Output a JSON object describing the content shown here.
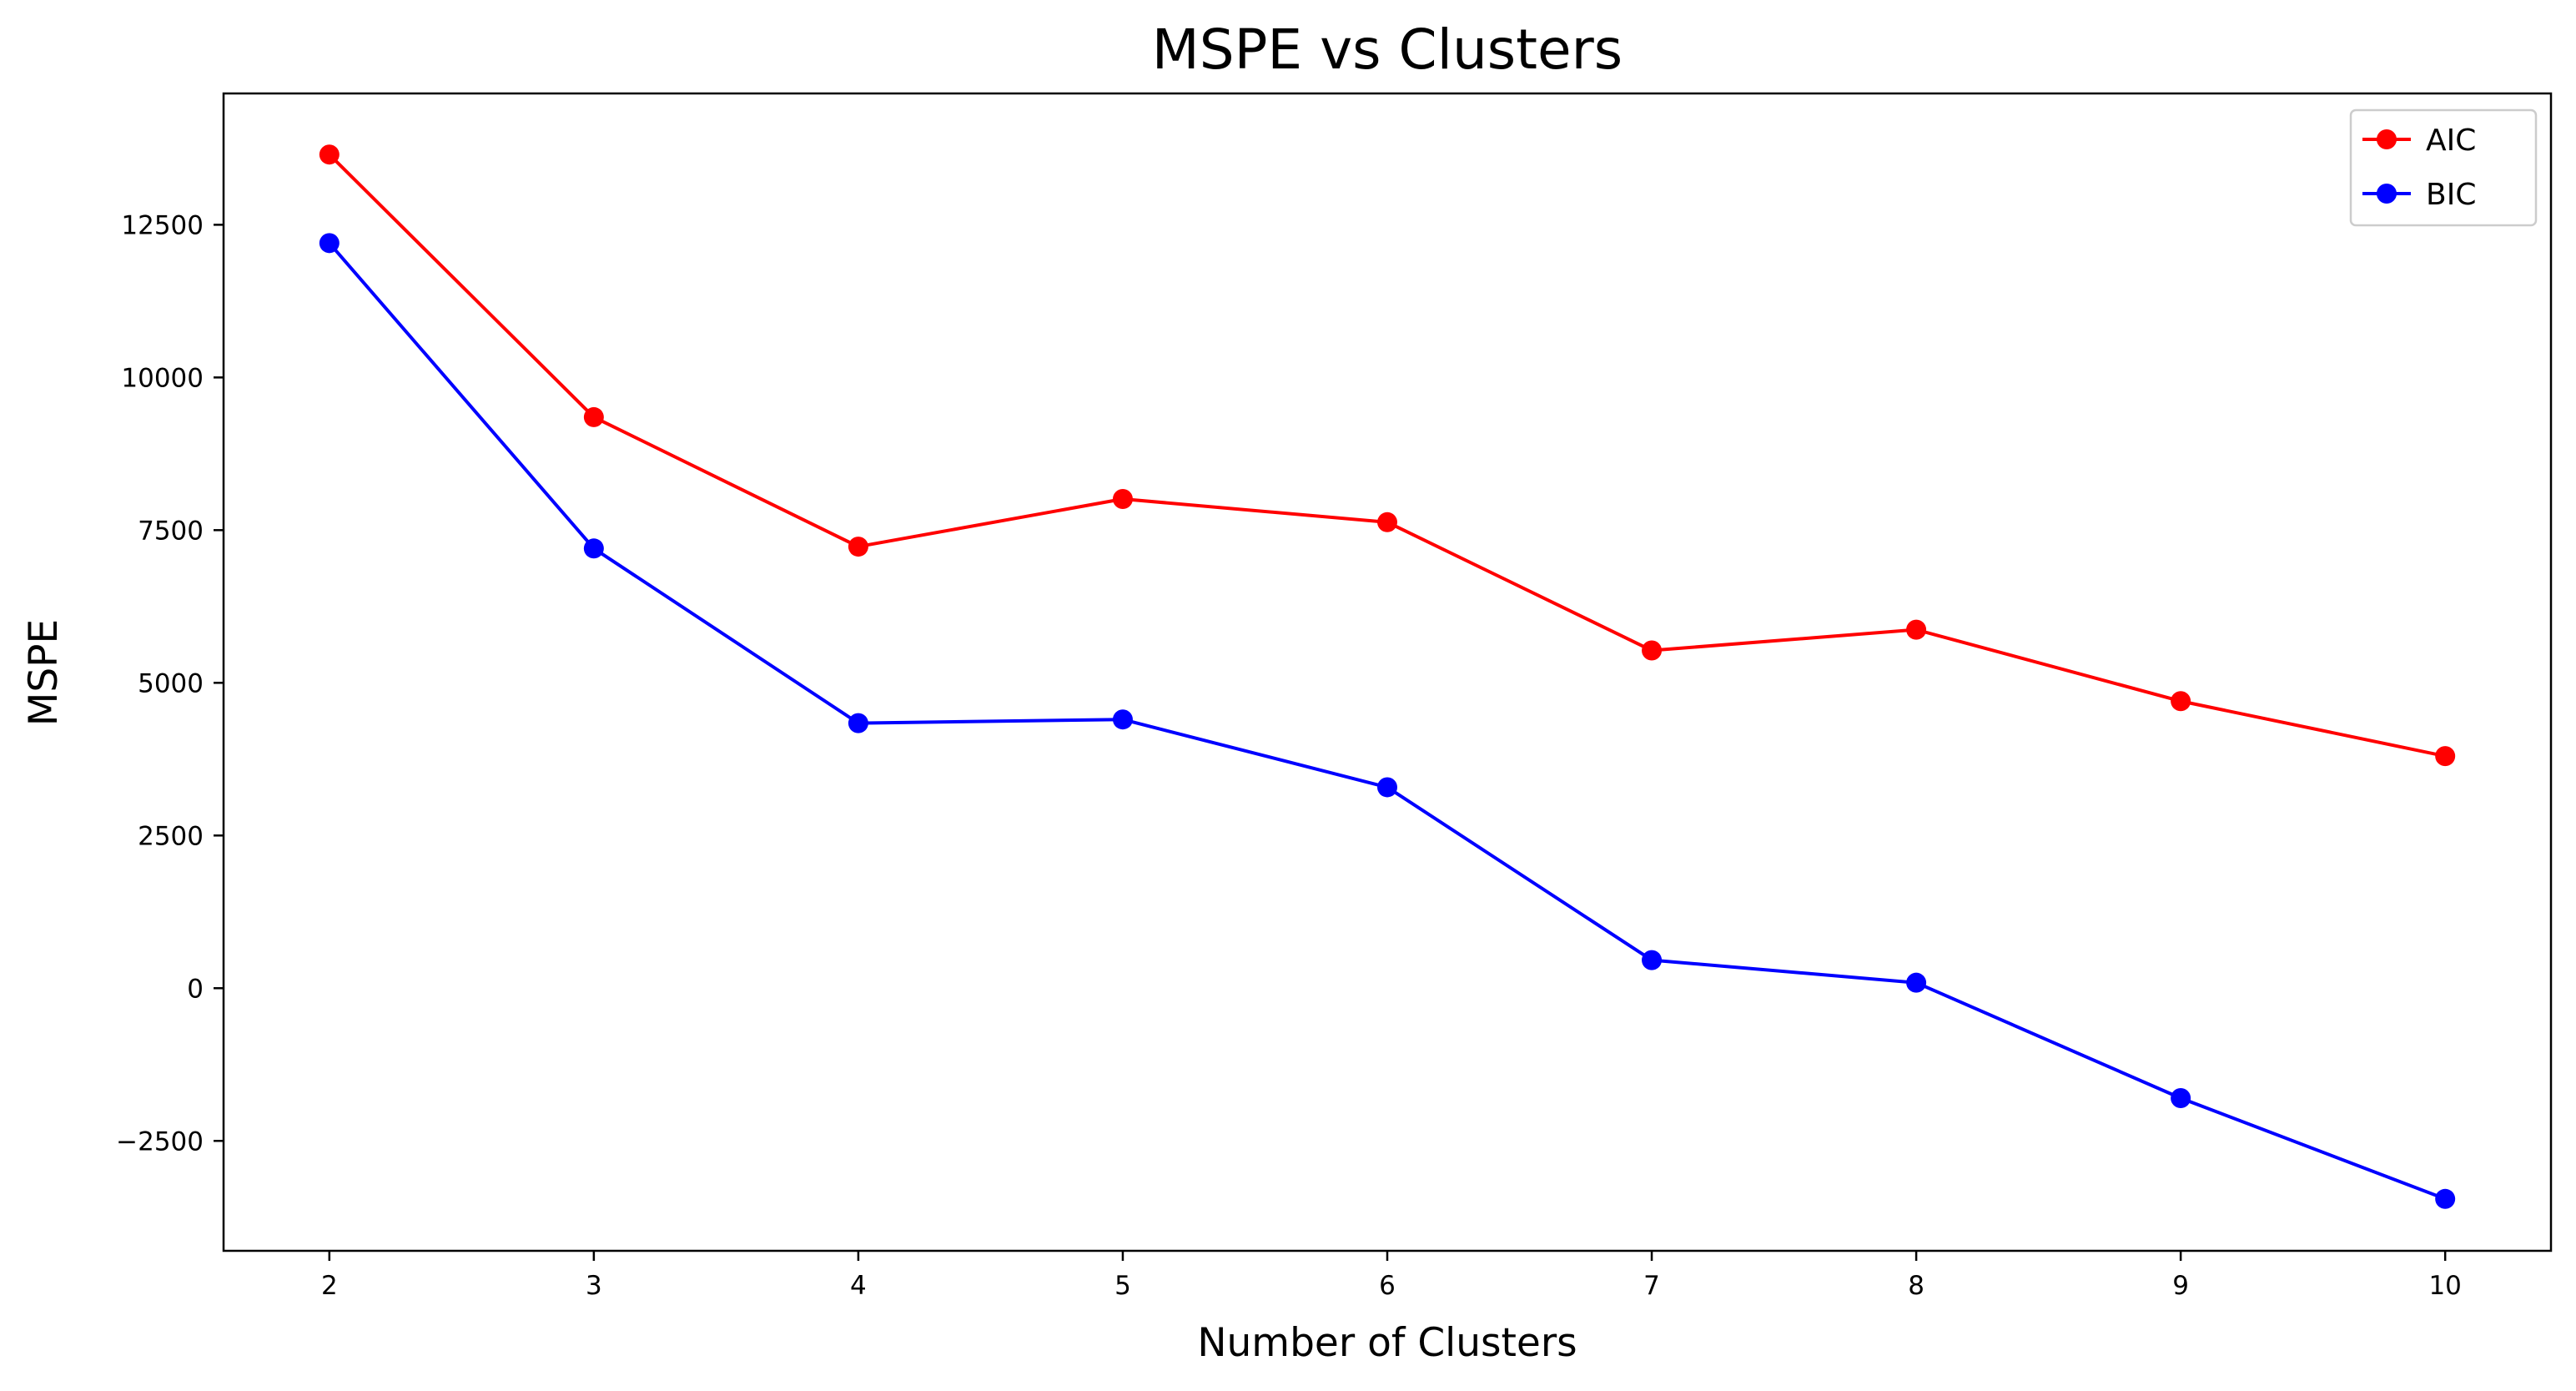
{
  "chart_data": {
    "type": "line",
    "title": "MSPE vs Clusters",
    "xlabel": "Number of Clusters",
    "ylabel": "MSPE",
    "x": [
      2,
      3,
      4,
      5,
      6,
      7,
      8,
      9,
      10
    ],
    "xticks": [
      "2",
      "3",
      "4",
      "5",
      "6",
      "7",
      "8",
      "9",
      "10"
    ],
    "yticks": [
      "−2500",
      "0",
      "2500",
      "5000",
      "7500",
      "10000",
      "12500"
    ],
    "ytick_values": [
      -2500,
      0,
      2500,
      5000,
      7500,
      10000,
      12500
    ],
    "xlim": [
      1.6,
      10.4
    ],
    "ylim": [
      -4300,
      14650
    ],
    "grid": false,
    "legend_position": "top-right",
    "series": [
      {
        "name": "AIC",
        "color": "#ff0000",
        "marker": "circle",
        "values": [
          13650,
          9350,
          7230,
          8010,
          7630,
          5530,
          5870,
          4700,
          3800
        ]
      },
      {
        "name": "BIC",
        "color": "#0000ff",
        "marker": "circle",
        "values": [
          12200,
          7200,
          4340,
          4400,
          3290,
          460,
          90,
          -1800,
          -3450
        ]
      }
    ]
  }
}
